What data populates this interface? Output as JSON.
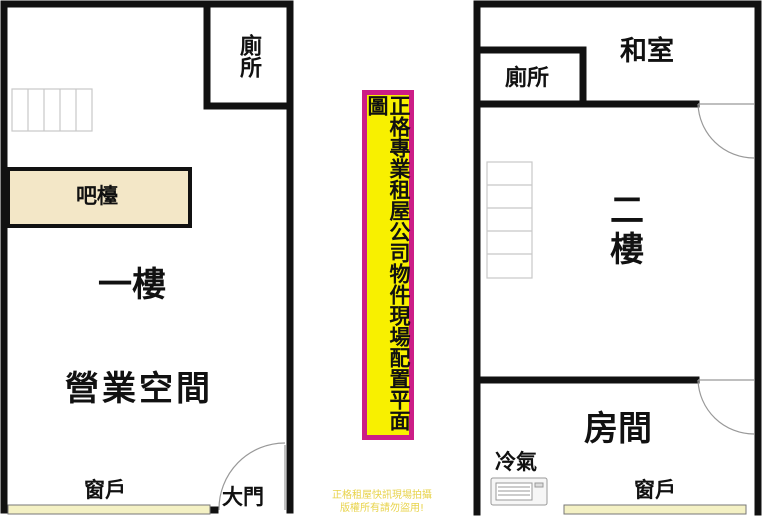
{
  "left_floor": {
    "toilet": "廁所",
    "bar": "吧檯",
    "floor_name": "一樓",
    "business_space": "營業空間",
    "window": "窗戶",
    "main_door": "大門"
  },
  "right_floor": {
    "japanese_room": "和室",
    "toilet": "廁所",
    "floor_name_line1": "二",
    "floor_name_line2": "樓",
    "bedroom": "房間",
    "aircon": "冷氣",
    "window": "窗戶"
  },
  "banner": {
    "text": "正格專業租屋公司物件現場配置平面圖"
  },
  "watermark": {
    "line1": "正格租屋快訊現場拍攝",
    "line2": "版權所有請勿盜用!"
  },
  "colors": {
    "wall": "#111111",
    "bar_fill": "#f3e7c7",
    "banner_fill": "#f8f000",
    "banner_border": "#cc1d86",
    "window_fill": "#f4f1c4"
  }
}
